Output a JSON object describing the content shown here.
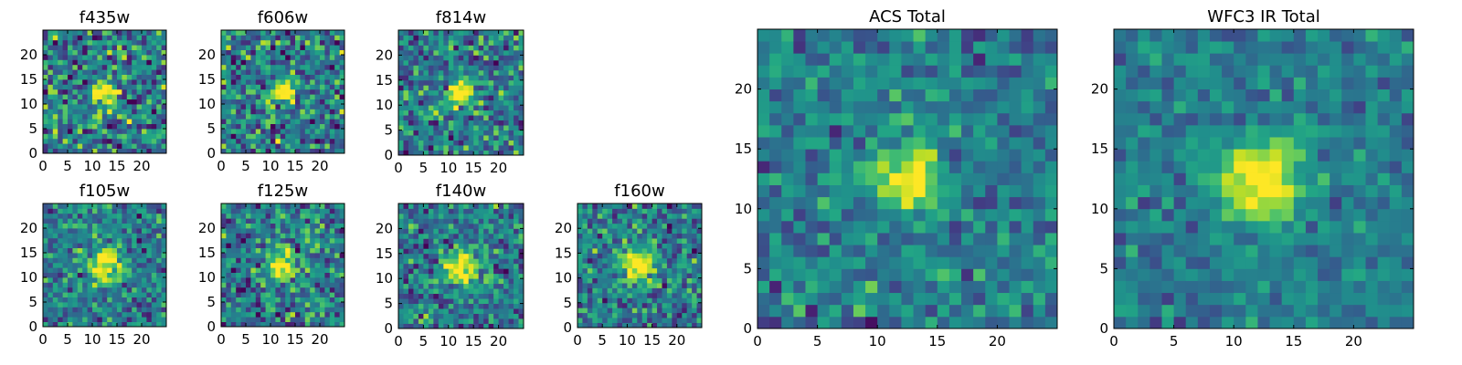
{
  "chart_data": [
    {
      "type": "heatmap",
      "title": "f435w",
      "size": 25,
      "xticks": [
        "0",
        "5",
        "10",
        "15",
        "20"
      ],
      "yticks": [
        "0",
        "5",
        "10",
        "15",
        "20"
      ],
      "xlim": [
        0,
        25
      ],
      "ylim": [
        0,
        25
      ],
      "colormap": "viridis",
      "source": {
        "center": [
          12.5,
          12.5
        ],
        "sigma": 1.7,
        "noise": 0.45,
        "seed": 11
      }
    },
    {
      "type": "heatmap",
      "title": "f606w",
      "size": 25,
      "xticks": [
        "0",
        "5",
        "10",
        "15",
        "20"
      ],
      "yticks": [
        "0",
        "5",
        "10",
        "15",
        "20"
      ],
      "xlim": [
        0,
        25
      ],
      "ylim": [
        0,
        25
      ],
      "colormap": "viridis",
      "source": {
        "center": [
          12.5,
          12.5
        ],
        "sigma": 1.6,
        "noise": 0.42,
        "seed": 23
      }
    },
    {
      "type": "heatmap",
      "title": "f814w",
      "size": 25,
      "xticks": [
        "0",
        "5",
        "10",
        "15",
        "20"
      ],
      "yticks": [
        "0",
        "5",
        "10",
        "15",
        "20"
      ],
      "xlim": [
        0,
        25
      ],
      "ylim": [
        0,
        25
      ],
      "colormap": "viridis",
      "source": {
        "center": [
          12.5,
          12.5
        ],
        "sigma": 1.8,
        "noise": 0.38,
        "seed": 37
      }
    },
    {
      "type": "heatmap",
      "title": "f105w",
      "size": 25,
      "xticks": [
        "0",
        "5",
        "10",
        "15",
        "20"
      ],
      "yticks": [
        "0",
        "5",
        "10",
        "15",
        "20"
      ],
      "xlim": [
        0,
        25
      ],
      "ylim": [
        0,
        25
      ],
      "colormap": "viridis",
      "source": {
        "center": [
          12.5,
          12.5
        ],
        "sigma": 2.2,
        "noise": 0.32,
        "seed": 41
      }
    },
    {
      "type": "heatmap",
      "title": "f125w",
      "size": 25,
      "xticks": [
        "0",
        "5",
        "10",
        "15",
        "20"
      ],
      "yticks": [
        "0",
        "5",
        "10",
        "15",
        "20"
      ],
      "xlim": [
        0,
        25
      ],
      "ylim": [
        0,
        25
      ],
      "colormap": "viridis",
      "source": {
        "center": [
          12.5,
          12.5
        ],
        "sigma": 2.0,
        "noise": 0.38,
        "seed": 53
      }
    },
    {
      "type": "heatmap",
      "title": "f140w",
      "size": 25,
      "xticks": [
        "0",
        "5",
        "10",
        "15",
        "20"
      ],
      "yticks": [
        "0",
        "5",
        "10",
        "15",
        "20"
      ],
      "xlim": [
        0,
        25
      ],
      "ylim": [
        0,
        25
      ],
      "colormap": "viridis",
      "source": {
        "center": [
          12.5,
          12.5
        ],
        "sigma": 2.3,
        "noise": 0.34,
        "seed": 67
      }
    },
    {
      "type": "heatmap",
      "title": "f160w",
      "size": 25,
      "xticks": [
        "0",
        "5",
        "10",
        "15",
        "20"
      ],
      "yticks": [
        "0",
        "5",
        "10",
        "15",
        "20"
      ],
      "xlim": [
        0,
        25
      ],
      "ylim": [
        0,
        25
      ],
      "colormap": "viridis",
      "source": {
        "center": [
          12.0,
          12.5
        ],
        "sigma": 2.2,
        "noise": 0.35,
        "seed": 79
      }
    },
    {
      "type": "heatmap",
      "title": "ACS Total",
      "size": 25,
      "xticks": [
        "0",
        "5",
        "10",
        "15",
        "20"
      ],
      "yticks": [
        "0",
        "5",
        "10",
        "15",
        "20"
      ],
      "xlim": [
        0,
        25
      ],
      "ylim": [
        0,
        25
      ],
      "colormap": "viridis",
      "source": {
        "center": [
          12.5,
          12.5
        ],
        "sigma": 1.7,
        "noise": 0.26,
        "seed": 97
      }
    },
    {
      "type": "heatmap",
      "title": "WFC3 IR Total",
      "size": 25,
      "xticks": [
        "0",
        "5",
        "10",
        "15",
        "20"
      ],
      "yticks": [
        "0",
        "5",
        "10",
        "15",
        "20"
      ],
      "xlim": [
        0,
        25
      ],
      "ylim": [
        0,
        25
      ],
      "colormap": "viridis",
      "source": {
        "center": [
          12.5,
          12.5
        ],
        "sigma": 2.3,
        "noise": 0.2,
        "seed": 113
      }
    }
  ]
}
